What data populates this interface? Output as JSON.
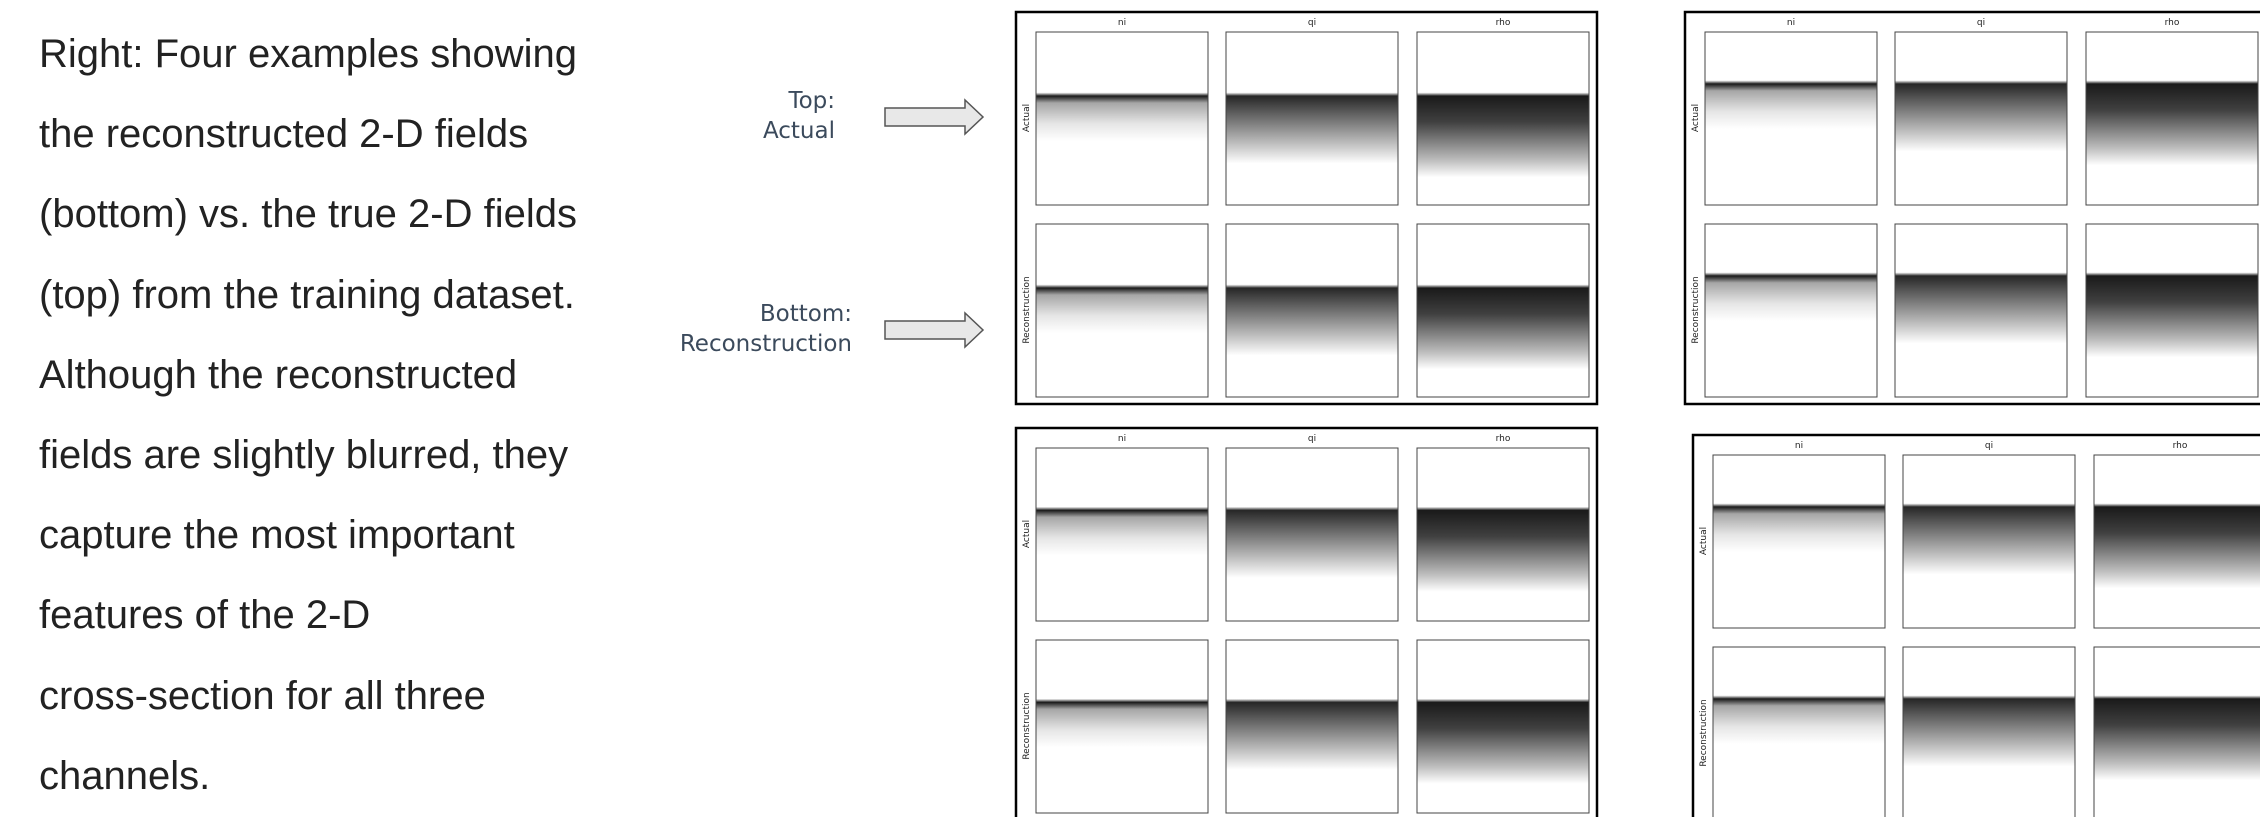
{
  "paragraph_lines": [
    "Right: Four examples showing",
    "the reconstructed 2-D fields",
    "(bottom) vs. the true 2-D fields",
    "(top) from the training dataset.",
    "Although the reconstructed",
    "fields are slightly blurred, they",
    "capture the most important",
    "features of the 2-D",
    "cross-section for all three",
    "channels."
  ],
  "annotations": [
    {
      "label": "Top:",
      "text": "Actual"
    },
    {
      "label": "Bottom:",
      "text": "Reconstruction"
    }
  ],
  "panels": [
    {
      "columns": [
        "ni",
        "qi",
        "rho"
      ],
      "rows": [
        "Actual",
        "Reconstruction"
      ]
    },
    {
      "columns": [
        "ni",
        "qi",
        "rho"
      ],
      "rows": [
        "Actual",
        "Reconstruction"
      ]
    },
    {
      "columns": [
        "ni",
        "qi",
        "rho"
      ],
      "rows": [
        "Actual",
        "Reconstruction"
      ]
    },
    {
      "columns": [
        "ni",
        "qi",
        "rho"
      ],
      "rows": [
        "Actual",
        "Reconstruction"
      ]
    }
  ]
}
